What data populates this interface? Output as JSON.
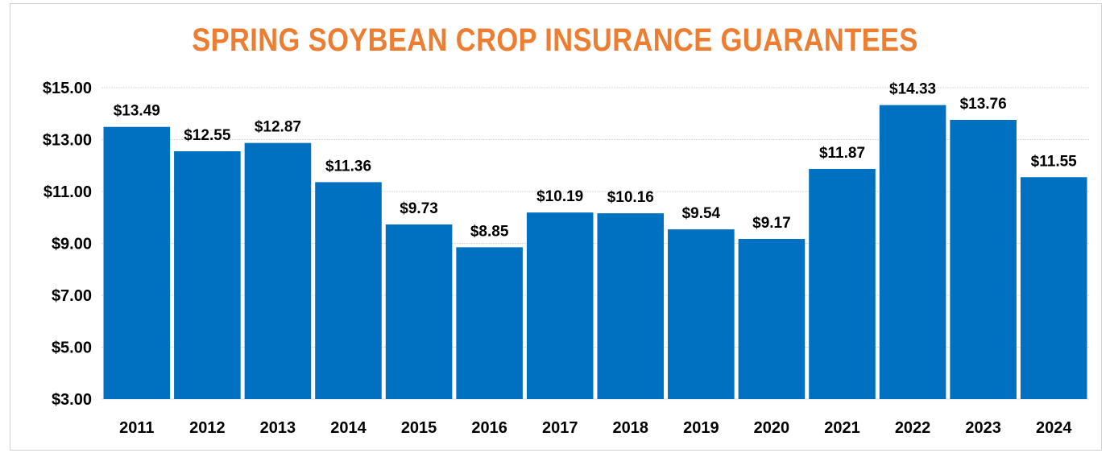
{
  "chart_data": {
    "type": "bar",
    "title": "SPRING SOYBEAN CROP INSURANCE GUARANTEES",
    "xlabel": "",
    "ylabel": "",
    "categories": [
      "2011",
      "2012",
      "2013",
      "2014",
      "2015",
      "2016",
      "2017",
      "2018",
      "2019",
      "2020",
      "2021",
      "2022",
      "2023",
      "2024"
    ],
    "values": [
      13.49,
      12.55,
      12.87,
      11.36,
      9.73,
      8.85,
      10.19,
      10.16,
      9.54,
      9.17,
      11.87,
      14.33,
      13.76,
      11.55
    ],
    "data_labels": [
      "$13.49",
      "$12.55",
      "$12.87",
      "$11.36",
      "$9.73",
      "$8.85",
      "$10.19",
      "$10.16",
      "$9.54",
      "$9.17",
      "$11.87",
      "$14.33",
      "$13.76",
      "$11.55"
    ],
    "ylim": [
      3,
      15
    ],
    "yticks": [
      3,
      5,
      7,
      9,
      11,
      13,
      15
    ],
    "ytick_labels": [
      "$3.00",
      "$5.00",
      "$7.00",
      "$9.00",
      "$11.00",
      "$13.00",
      "$15.00"
    ],
    "grid": true,
    "legend": "none",
    "colors": {
      "bar": "#0070C0",
      "title": "#ED7D31",
      "grid": "#d9d9d9"
    }
  }
}
